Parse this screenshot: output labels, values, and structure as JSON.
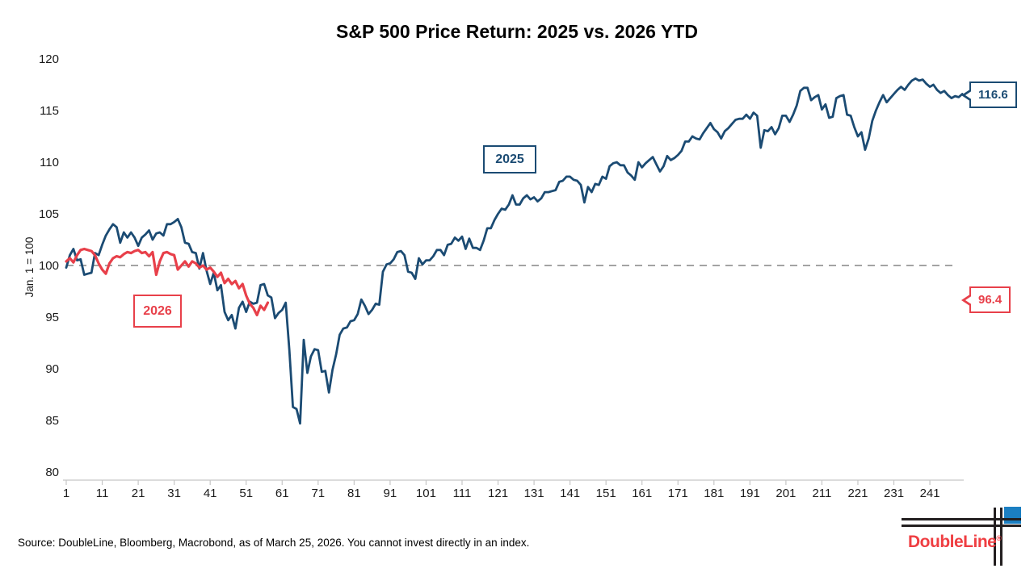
{
  "title": "S&P 500 Price Return: 2025 vs. 2026 YTD",
  "footer": {
    "source": "Source: DoubleLine, Bloomberg, Macrobond, as of March 25, 2026. You cannot invest directly in an index."
  },
  "logo": {
    "brand": "DoubleLine",
    "registered": "®"
  },
  "colors": {
    "blue": "#1B4B73",
    "red": "#E8404A",
    "dash": "#A3A3A3",
    "axis": "#C6C6C6",
    "label": "#1A1A1A",
    "logo_blue": "#1B7FC2",
    "logo_red": "#EF3E42",
    "logo_black": "#231F20"
  },
  "chart_data": {
    "type": "line",
    "title": "S&P 500 Price Return: 2025 vs. 2026 YTD",
    "xlabel": "",
    "ylabel": "Jan. 1 = 100",
    "xlim": [
      1,
      252
    ],
    "ylim": [
      79,
      121
    ],
    "grid": false,
    "legend_position": "inline-boxed-labels",
    "yticks": [
      80,
      85,
      90,
      95,
      100,
      105,
      110,
      115,
      120
    ],
    "xticks": [
      1,
      11,
      21,
      31,
      41,
      51,
      61,
      71,
      81,
      91,
      101,
      111,
      121,
      131,
      141,
      151,
      161,
      171,
      181,
      191,
      201,
      211,
      221,
      231,
      241
    ],
    "x_unit": "trading day of year",
    "reference_line": {
      "y": 100,
      "style": "dashed"
    },
    "series": [
      {
        "name": "2025",
        "color": "#1B4B73",
        "end_label": "116.6",
        "values": [
          99.8,
          101.0,
          101.6,
          100.5,
          100.6,
          99.1,
          99.2,
          99.3,
          101.2,
          101.0,
          102.0,
          102.9,
          103.5,
          104.0,
          103.7,
          102.2,
          103.2,
          102.7,
          103.2,
          102.7,
          101.9,
          102.7,
          103.0,
          103.4,
          102.5,
          103.1,
          103.2,
          102.9,
          104.0,
          104.0,
          104.2,
          104.5,
          103.7,
          102.2,
          102.1,
          101.3,
          101.2,
          99.7,
          101.2,
          99.5,
          98.2,
          99.3,
          97.6,
          98.1,
          95.5,
          94.7,
          95.2,
          93.9,
          95.9,
          96.5,
          95.5,
          96.5,
          96.3,
          96.4,
          98.1,
          98.2,
          97.1,
          96.9,
          94.9,
          95.4,
          95.7,
          96.4,
          91.8,
          86.3,
          86.1,
          84.7,
          92.8,
          89.6,
          91.2,
          91.9,
          91.8,
          89.7,
          89.8,
          87.7,
          89.9,
          91.4,
          93.3,
          93.9,
          94.0,
          94.6,
          94.7,
          95.3,
          96.7,
          96.1,
          95.3,
          95.7,
          96.3,
          96.2,
          99.4,
          100.1,
          100.2,
          100.6,
          101.3,
          101.4,
          101.0,
          99.4,
          99.3,
          98.7,
          100.7,
          100.1,
          100.5,
          100.5,
          100.9,
          101.5,
          101.5,
          101.0,
          102.0,
          102.1,
          102.7,
          102.4,
          102.8,
          101.6,
          102.6,
          101.7,
          101.7,
          101.5,
          102.4,
          103.6,
          103.6,
          104.4,
          105.0,
          105.5,
          105.4,
          105.9,
          106.8,
          105.9,
          105.9,
          106.5,
          106.8,
          106.4,
          106.6,
          106.2,
          106.5,
          107.1,
          107.1,
          107.2,
          107.3,
          108.1,
          108.2,
          108.6,
          108.6,
          108.3,
          108.2,
          107.8,
          106.1,
          107.6,
          107.1,
          107.9,
          107.8,
          108.6,
          108.4,
          109.6,
          109.9,
          110.0,
          109.7,
          109.7,
          109.0,
          108.7,
          108.3,
          110.0,
          109.5,
          109.9,
          110.2,
          110.5,
          109.8,
          109.1,
          109.6,
          110.6,
          110.2,
          110.4,
          110.7,
          111.1,
          112.0,
          112.0,
          112.5,
          112.3,
          112.2,
          112.8,
          113.3,
          113.8,
          113.2,
          112.9,
          112.3,
          113.0,
          113.3,
          113.7,
          114.1,
          114.2,
          114.2,
          114.6,
          114.2,
          114.8,
          114.5,
          111.4,
          113.1,
          113.0,
          113.4,
          112.7,
          113.3,
          114.5,
          114.5,
          113.9,
          114.6,
          115.5,
          116.9,
          117.2,
          117.2,
          116.0,
          116.3,
          116.5,
          115.1,
          115.6,
          114.3,
          114.4,
          116.2,
          116.4,
          116.5,
          114.6,
          114.5,
          113.4,
          112.5,
          112.9,
          111.2,
          112.3,
          114.0,
          115.0,
          115.8,
          116.5,
          115.8,
          116.2,
          116.6,
          117.0,
          117.3,
          117.0,
          117.5,
          117.9,
          118.1,
          117.9,
          118.0,
          117.6,
          117.3,
          117.5,
          117.0,
          116.7,
          116.9,
          116.5,
          116.2,
          116.4,
          116.3,
          116.6
        ]
      },
      {
        "name": "2026",
        "color": "#E8404A",
        "end_label": "96.4",
        "values": [
          100.4,
          100.7,
          100.3,
          101.0,
          101.5,
          101.6,
          101.5,
          101.4,
          101.0,
          100.2,
          99.6,
          99.2,
          100.2,
          100.7,
          100.9,
          100.8,
          101.1,
          101.3,
          101.2,
          101.4,
          101.5,
          101.2,
          101.3,
          100.9,
          101.3,
          99.1,
          100.4,
          101.2,
          101.3,
          101.1,
          101.0,
          99.6,
          100.0,
          100.4,
          99.9,
          100.4,
          100.2,
          99.8,
          100.0,
          99.6,
          99.8,
          99.4,
          98.9,
          99.3,
          98.3,
          98.7,
          98.2,
          98.5,
          97.8,
          98.2,
          97.1,
          96.3,
          95.9,
          95.2,
          96.1,
          95.7,
          96.4
        ]
      }
    ]
  }
}
